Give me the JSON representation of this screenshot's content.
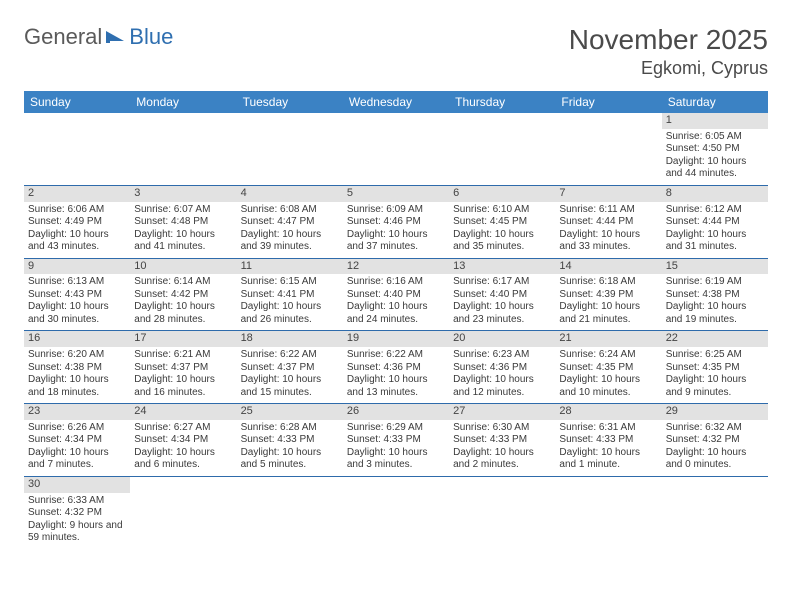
{
  "logo": {
    "part1": "General",
    "part2": "Blue"
  },
  "title": "November 2025",
  "location": "Egkomi, Cyprus",
  "colors": {
    "header_bg": "#3b82c4",
    "header_text": "#ffffff",
    "border": "#2e6bab",
    "daynum_bg": "#e2e2e2",
    "text": "#3a3a3a",
    "logo_gray": "#5a5a5a",
    "logo_blue": "#2f6fb0"
  },
  "weekdays": [
    "Sunday",
    "Monday",
    "Tuesday",
    "Wednesday",
    "Thursday",
    "Friday",
    "Saturday"
  ],
  "weeks": [
    [
      null,
      null,
      null,
      null,
      null,
      null,
      {
        "d": "1",
        "sr": "Sunrise: 6:05 AM",
        "ss": "Sunset: 4:50 PM",
        "dl": "Daylight: 10 hours and 44 minutes."
      }
    ],
    [
      {
        "d": "2",
        "sr": "Sunrise: 6:06 AM",
        "ss": "Sunset: 4:49 PM",
        "dl": "Daylight: 10 hours and 43 minutes."
      },
      {
        "d": "3",
        "sr": "Sunrise: 6:07 AM",
        "ss": "Sunset: 4:48 PM",
        "dl": "Daylight: 10 hours and 41 minutes."
      },
      {
        "d": "4",
        "sr": "Sunrise: 6:08 AM",
        "ss": "Sunset: 4:47 PM",
        "dl": "Daylight: 10 hours and 39 minutes."
      },
      {
        "d": "5",
        "sr": "Sunrise: 6:09 AM",
        "ss": "Sunset: 4:46 PM",
        "dl": "Daylight: 10 hours and 37 minutes."
      },
      {
        "d": "6",
        "sr": "Sunrise: 6:10 AM",
        "ss": "Sunset: 4:45 PM",
        "dl": "Daylight: 10 hours and 35 minutes."
      },
      {
        "d": "7",
        "sr": "Sunrise: 6:11 AM",
        "ss": "Sunset: 4:44 PM",
        "dl": "Daylight: 10 hours and 33 minutes."
      },
      {
        "d": "8",
        "sr": "Sunrise: 6:12 AM",
        "ss": "Sunset: 4:44 PM",
        "dl": "Daylight: 10 hours and 31 minutes."
      }
    ],
    [
      {
        "d": "9",
        "sr": "Sunrise: 6:13 AM",
        "ss": "Sunset: 4:43 PM",
        "dl": "Daylight: 10 hours and 30 minutes."
      },
      {
        "d": "10",
        "sr": "Sunrise: 6:14 AM",
        "ss": "Sunset: 4:42 PM",
        "dl": "Daylight: 10 hours and 28 minutes."
      },
      {
        "d": "11",
        "sr": "Sunrise: 6:15 AM",
        "ss": "Sunset: 4:41 PM",
        "dl": "Daylight: 10 hours and 26 minutes."
      },
      {
        "d": "12",
        "sr": "Sunrise: 6:16 AM",
        "ss": "Sunset: 4:40 PM",
        "dl": "Daylight: 10 hours and 24 minutes."
      },
      {
        "d": "13",
        "sr": "Sunrise: 6:17 AM",
        "ss": "Sunset: 4:40 PM",
        "dl": "Daylight: 10 hours and 23 minutes."
      },
      {
        "d": "14",
        "sr": "Sunrise: 6:18 AM",
        "ss": "Sunset: 4:39 PM",
        "dl": "Daylight: 10 hours and 21 minutes."
      },
      {
        "d": "15",
        "sr": "Sunrise: 6:19 AM",
        "ss": "Sunset: 4:38 PM",
        "dl": "Daylight: 10 hours and 19 minutes."
      }
    ],
    [
      {
        "d": "16",
        "sr": "Sunrise: 6:20 AM",
        "ss": "Sunset: 4:38 PM",
        "dl": "Daylight: 10 hours and 18 minutes."
      },
      {
        "d": "17",
        "sr": "Sunrise: 6:21 AM",
        "ss": "Sunset: 4:37 PM",
        "dl": "Daylight: 10 hours and 16 minutes."
      },
      {
        "d": "18",
        "sr": "Sunrise: 6:22 AM",
        "ss": "Sunset: 4:37 PM",
        "dl": "Daylight: 10 hours and 15 minutes."
      },
      {
        "d": "19",
        "sr": "Sunrise: 6:22 AM",
        "ss": "Sunset: 4:36 PM",
        "dl": "Daylight: 10 hours and 13 minutes."
      },
      {
        "d": "20",
        "sr": "Sunrise: 6:23 AM",
        "ss": "Sunset: 4:36 PM",
        "dl": "Daylight: 10 hours and 12 minutes."
      },
      {
        "d": "21",
        "sr": "Sunrise: 6:24 AM",
        "ss": "Sunset: 4:35 PM",
        "dl": "Daylight: 10 hours and 10 minutes."
      },
      {
        "d": "22",
        "sr": "Sunrise: 6:25 AM",
        "ss": "Sunset: 4:35 PM",
        "dl": "Daylight: 10 hours and 9 minutes."
      }
    ],
    [
      {
        "d": "23",
        "sr": "Sunrise: 6:26 AM",
        "ss": "Sunset: 4:34 PM",
        "dl": "Daylight: 10 hours and 7 minutes."
      },
      {
        "d": "24",
        "sr": "Sunrise: 6:27 AM",
        "ss": "Sunset: 4:34 PM",
        "dl": "Daylight: 10 hours and 6 minutes."
      },
      {
        "d": "25",
        "sr": "Sunrise: 6:28 AM",
        "ss": "Sunset: 4:33 PM",
        "dl": "Daylight: 10 hours and 5 minutes."
      },
      {
        "d": "26",
        "sr": "Sunrise: 6:29 AM",
        "ss": "Sunset: 4:33 PM",
        "dl": "Daylight: 10 hours and 3 minutes."
      },
      {
        "d": "27",
        "sr": "Sunrise: 6:30 AM",
        "ss": "Sunset: 4:33 PM",
        "dl": "Daylight: 10 hours and 2 minutes."
      },
      {
        "d": "28",
        "sr": "Sunrise: 6:31 AM",
        "ss": "Sunset: 4:33 PM",
        "dl": "Daylight: 10 hours and 1 minute."
      },
      {
        "d": "29",
        "sr": "Sunrise: 6:32 AM",
        "ss": "Sunset: 4:32 PM",
        "dl": "Daylight: 10 hours and 0 minutes."
      }
    ],
    [
      {
        "d": "30",
        "sr": "Sunrise: 6:33 AM",
        "ss": "Sunset: 4:32 PM",
        "dl": "Daylight: 9 hours and 59 minutes."
      },
      null,
      null,
      null,
      null,
      null,
      null
    ]
  ]
}
